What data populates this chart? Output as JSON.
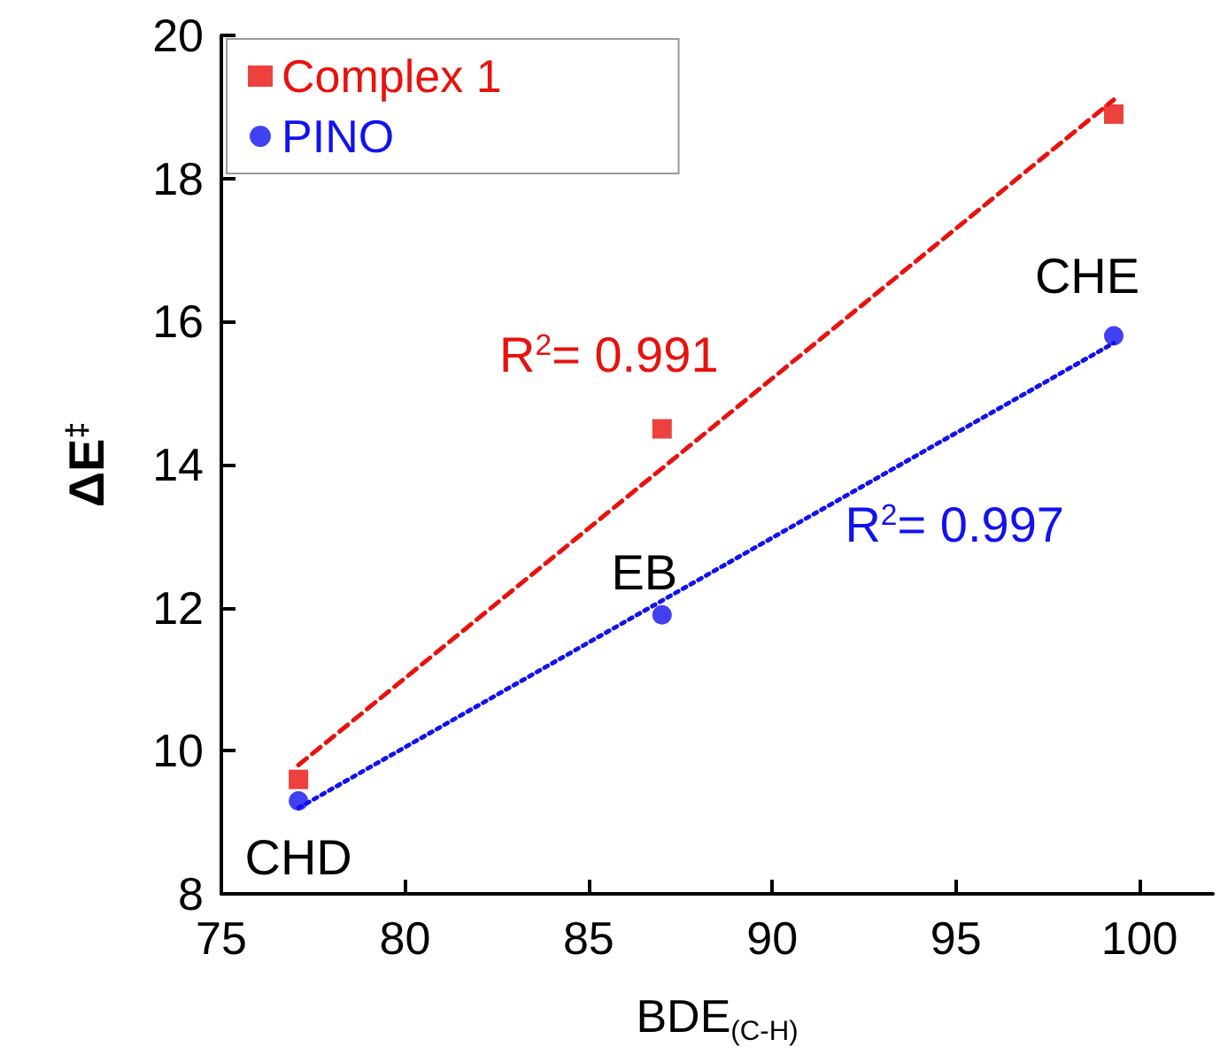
{
  "chart_data": {
    "type": "scatter",
    "xlabel": "BDE$_{(C-H)}$",
    "ylabel": "ΔE$^{‡}$",
    "xlim": [
      75,
      102
    ],
    "xticks": [
      75,
      80,
      85,
      90,
      95,
      100
    ],
    "ylim": [
      8,
      20
    ],
    "yticks": [
      8,
      10,
      12,
      14,
      16,
      18,
      20
    ],
    "grid": false,
    "legend": "top left",
    "series": [
      {
        "name": "Complex 1",
        "marker": "square",
        "color": "#e8120e",
        "x": [
          77.1,
          87,
          99.3
        ],
        "values": [
          9.6,
          14.5,
          18.9
        ]
      },
      {
        "name": "PINO",
        "marker": "circle",
        "color": "#1212f0",
        "x": [
          77.1,
          87,
          99.3
        ],
        "values": [
          9.3,
          11.9,
          15.8
        ]
      },
      {
        "type": "line",
        "marker": "none",
        "line_style": "dashed",
        "color": "#e8120e",
        "x": [
          77.1,
          99.3
        ],
        "values": [
          9.8,
          19.1
        ]
      },
      {
        "type": "line",
        "marker": "none",
        "line_style": "dotted",
        "color": "#1212f0",
        "x": [
          77.1,
          99.3
        ],
        "values": [
          9.2,
          15.7
        ]
      }
    ],
    "annotations": [
      {
        "text": "CHD",
        "x": 77.1,
        "y": 9.3
      },
      {
        "text": "EB",
        "x": 87,
        "y": 11.9
      },
      {
        "text": "CHE",
        "x": 99.3,
        "y": 15.8
      },
      {
        "text": "R$^{2}$= 0.991",
        "x": 87,
        "y": 14.0
      },
      {
        "text": "R$^{2}$= 0.997",
        "x": 94,
        "y": 14.2
      }
    ]
  }
}
